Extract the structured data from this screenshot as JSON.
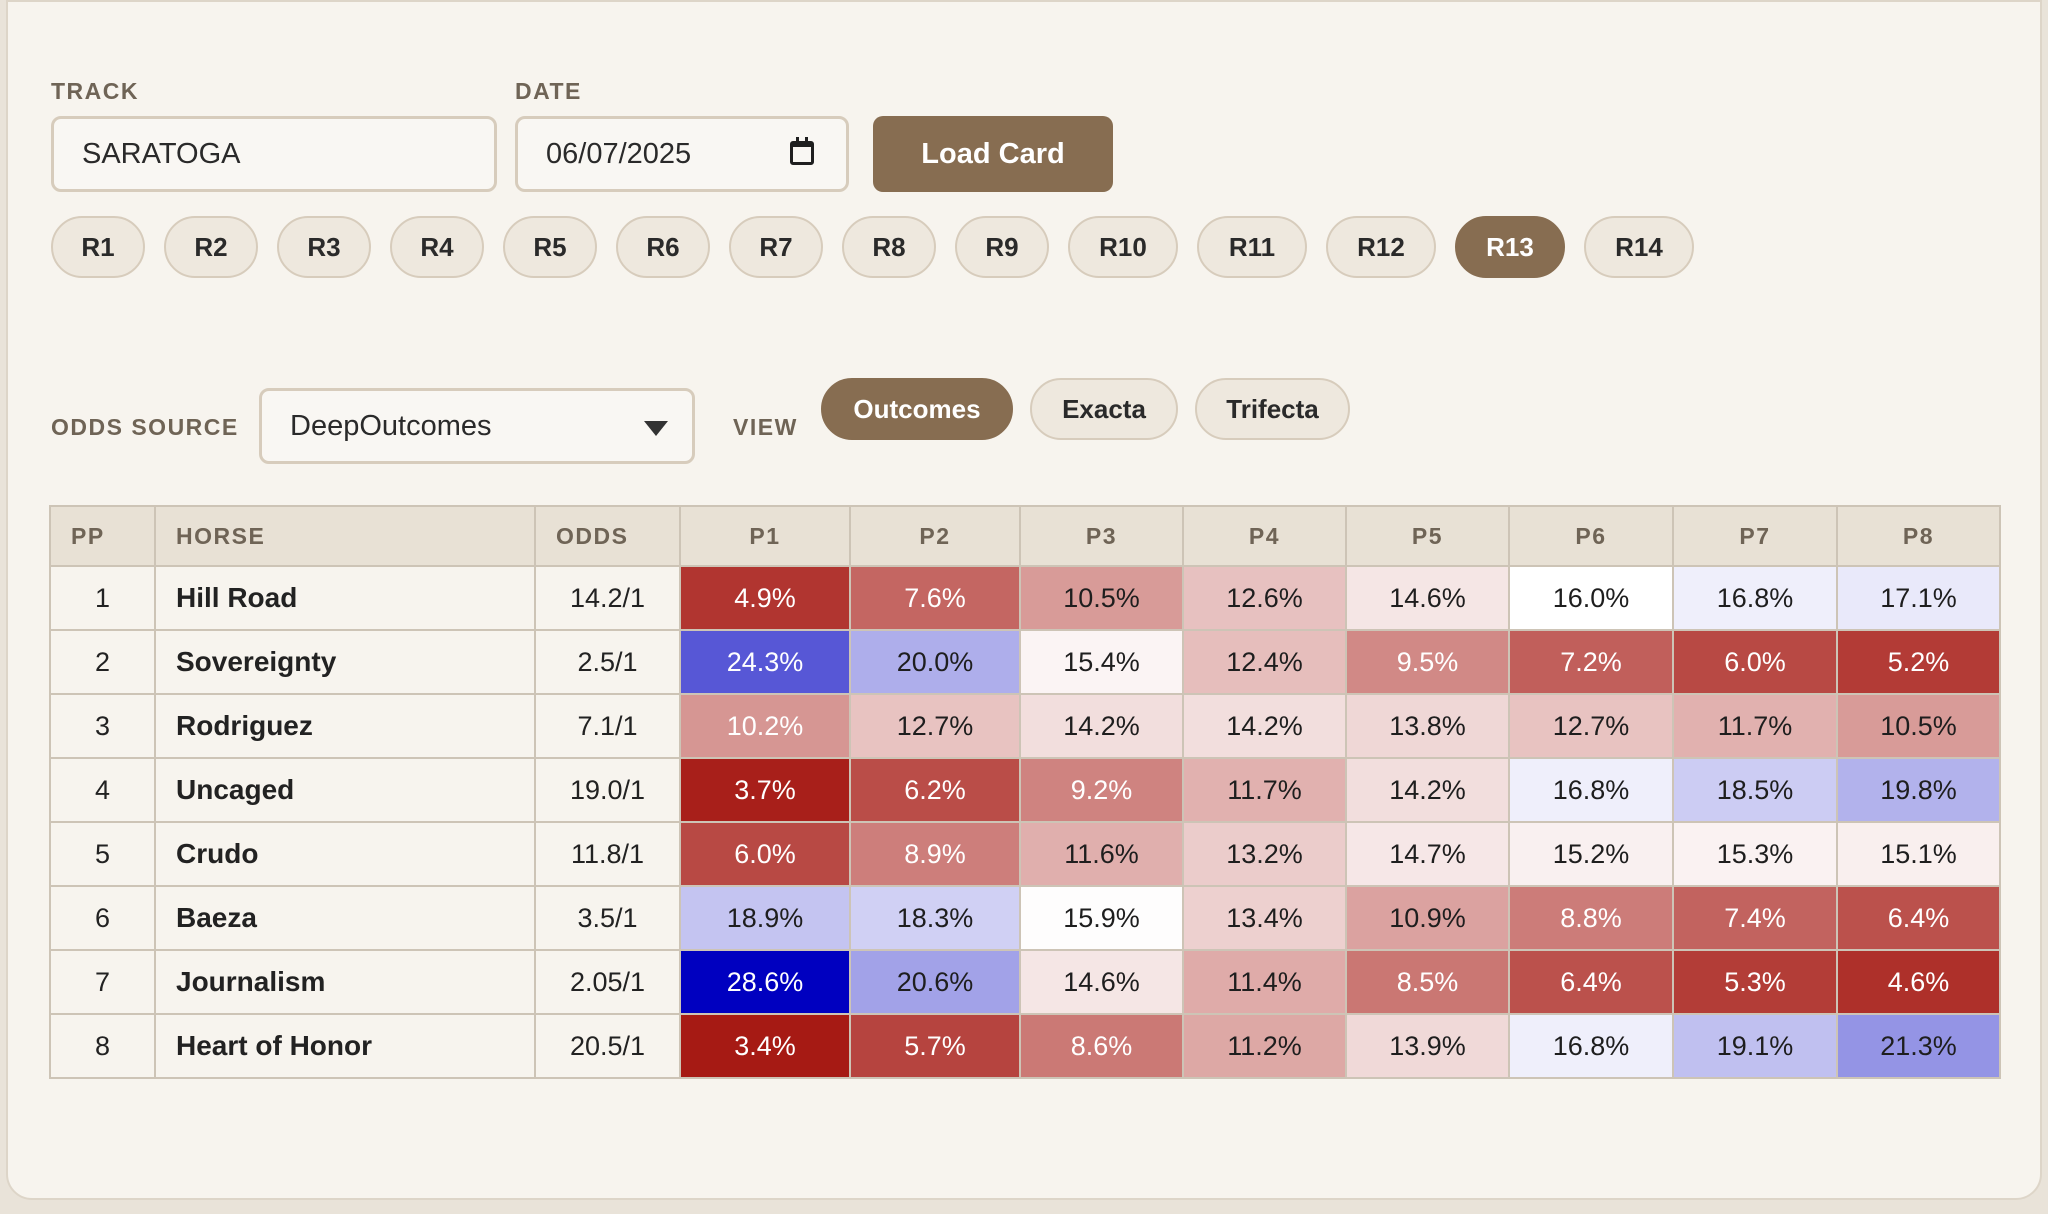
{
  "controls": {
    "track_label": "TRACK",
    "track_value": "SARATOGA",
    "date_label": "DATE",
    "date_value": "06/07/2025",
    "load_button": "Load Card"
  },
  "races": {
    "items": [
      "R1",
      "R2",
      "R3",
      "R4",
      "R5",
      "R6",
      "R7",
      "R8",
      "R9",
      "R10",
      "R11",
      "R12",
      "R13",
      "R14"
    ],
    "selected": "R13"
  },
  "odds_source": {
    "label": "ODDS SOURCE",
    "value": "DeepOutcomes"
  },
  "view": {
    "label": "VIEW",
    "options": [
      "Outcomes",
      "Exacta",
      "Trifecta"
    ],
    "selected": "Outcomes"
  },
  "table": {
    "headers": [
      "PP",
      "HORSE",
      "ODDS",
      "P1",
      "P2",
      "P3",
      "P4",
      "P5",
      "P6",
      "P7",
      "P8"
    ],
    "rows": [
      {
        "pp": "1",
        "horse": "Hill Road",
        "odds": "14.2/1",
        "probs": [
          4.9,
          7.6,
          10.5,
          12.6,
          14.6,
          16.0,
          16.8,
          17.1
        ],
        "probs_text": [
          "4.9%",
          "7.6%",
          "10.5%",
          "12.6%",
          "14.6%",
          "16.0%",
          "16.8%",
          "17.1%"
        ]
      },
      {
        "pp": "2",
        "horse": "Sovereignty",
        "odds": "2.5/1",
        "probs": [
          24.3,
          20.0,
          15.4,
          12.4,
          9.5,
          7.2,
          6.0,
          5.2
        ],
        "probs_text": [
          "24.3%",
          "20.0%",
          "15.4%",
          "12.4%",
          "9.5%",
          "7.2%",
          "6.0%",
          "5.2%"
        ]
      },
      {
        "pp": "3",
        "horse": "Rodriguez",
        "odds": "7.1/1",
        "probs": [
          10.2,
          12.7,
          14.2,
          14.2,
          13.8,
          12.7,
          11.7,
          10.5
        ],
        "probs_text": [
          "10.2%",
          "12.7%",
          "14.2%",
          "14.2%",
          "13.8%",
          "12.7%",
          "11.7%",
          "10.5%"
        ]
      },
      {
        "pp": "4",
        "horse": "Uncaged",
        "odds": "19.0/1",
        "probs": [
          3.7,
          6.2,
          9.2,
          11.7,
          14.2,
          16.8,
          18.5,
          19.8
        ],
        "probs_text": [
          "3.7%",
          "6.2%",
          "9.2%",
          "11.7%",
          "14.2%",
          "16.8%",
          "18.5%",
          "19.8%"
        ]
      },
      {
        "pp": "5",
        "horse": "Crudo",
        "odds": "11.8/1",
        "probs": [
          6.0,
          8.9,
          11.6,
          13.2,
          14.7,
          15.2,
          15.3,
          15.1
        ],
        "probs_text": [
          "6.0%",
          "8.9%",
          "11.6%",
          "13.2%",
          "14.7%",
          "15.2%",
          "15.3%",
          "15.1%"
        ]
      },
      {
        "pp": "6",
        "horse": "Baeza",
        "odds": "3.5/1",
        "probs": [
          18.9,
          18.3,
          15.9,
          13.4,
          10.9,
          8.8,
          7.4,
          6.4
        ],
        "probs_text": [
          "18.9%",
          "18.3%",
          "15.9%",
          "13.4%",
          "10.9%",
          "8.8%",
          "7.4%",
          "6.4%"
        ]
      },
      {
        "pp": "7",
        "horse": "Journalism",
        "odds": "2.05/1",
        "probs": [
          28.6,
          20.6,
          14.6,
          11.4,
          8.5,
          6.4,
          5.3,
          4.6
        ],
        "probs_text": [
          "28.6%",
          "20.6%",
          "14.6%",
          "11.4%",
          "8.5%",
          "6.4%",
          "5.3%",
          "4.6%"
        ]
      },
      {
        "pp": "8",
        "horse": "Heart of Honor",
        "odds": "20.5/1",
        "probs": [
          3.4,
          5.7,
          8.6,
          11.2,
          13.9,
          16.8,
          19.1,
          21.3
        ],
        "probs_text": [
          "3.4%",
          "5.7%",
          "8.6%",
          "11.2%",
          "13.9%",
          "16.8%",
          "19.1%",
          "21.3%"
        ]
      }
    ]
  },
  "colors": {
    "accent": "#876d51",
    "panel_bg": "#f7f4ee",
    "heat_low": "#a61a14",
    "heat_mid": "#ffffff",
    "heat_high": "#0000c0"
  }
}
